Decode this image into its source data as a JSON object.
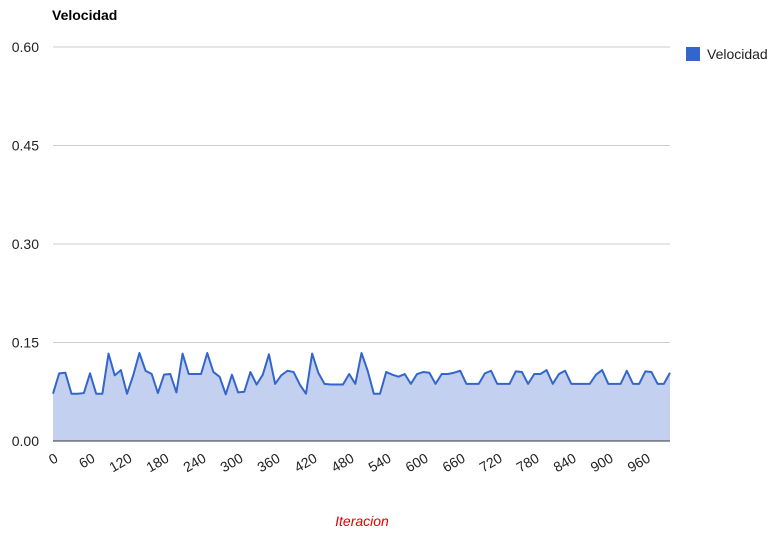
{
  "chart_data": {
    "type": "area",
    "title": "Velocidad",
    "xlabel": "Iteracion",
    "ylabel": "",
    "ylim": [
      0,
      0.6
    ],
    "yticks": [
      "0.00",
      "0.15",
      "0.30",
      "0.45",
      "0.60"
    ],
    "xticks": [
      "0",
      "60",
      "120",
      "180",
      "240",
      "300",
      "360",
      "420",
      "480",
      "540",
      "600",
      "660",
      "720",
      "780",
      "840",
      "900",
      "960"
    ],
    "xlim": [
      0,
      1000
    ],
    "grid": true,
    "legend_position": "right",
    "series": [
      {
        "name": "Velocidad",
        "color": "#3366cc",
        "x": [
          0,
          10,
          20,
          30,
          40,
          50,
          60,
          70,
          80,
          90,
          100,
          110,
          120,
          130,
          140,
          150,
          160,
          170,
          180,
          190,
          200,
          210,
          220,
          230,
          240,
          250,
          260,
          270,
          280,
          290,
          300,
          310,
          320,
          330,
          340,
          350,
          360,
          370,
          380,
          390,
          400,
          410,
          420,
          430,
          440,
          450,
          460,
          470,
          480,
          490,
          500,
          510,
          520,
          530,
          540,
          550,
          560,
          570,
          580,
          590,
          600,
          610,
          620,
          630,
          640,
          650,
          660,
          670,
          680,
          690,
          700,
          710,
          720,
          730,
          740,
          750,
          760,
          770,
          780,
          790,
          800,
          810,
          820,
          830,
          840,
          850,
          860,
          870,
          880,
          890,
          900,
          910,
          920,
          930,
          940,
          950,
          960,
          970,
          980,
          990,
          1000
        ],
        "values": [
          0.072,
          0.103,
          0.104,
          0.072,
          0.072,
          0.073,
          0.103,
          0.072,
          0.072,
          0.133,
          0.1,
          0.108,
          0.072,
          0.1,
          0.134,
          0.107,
          0.102,
          0.073,
          0.101,
          0.102,
          0.074,
          0.133,
          0.102,
          0.102,
          0.102,
          0.134,
          0.105,
          0.098,
          0.071,
          0.101,
          0.074,
          0.075,
          0.105,
          0.086,
          0.101,
          0.132,
          0.087,
          0.1,
          0.107,
          0.105,
          0.086,
          0.072,
          0.133,
          0.104,
          0.087,
          0.086,
          0.086,
          0.086,
          0.102,
          0.087,
          0.134,
          0.107,
          0.072,
          0.072,
          0.105,
          0.101,
          0.098,
          0.102,
          0.087,
          0.102,
          0.105,
          0.104,
          0.087,
          0.102,
          0.102,
          0.104,
          0.107,
          0.087,
          0.087,
          0.087,
          0.103,
          0.107,
          0.087,
          0.087,
          0.087,
          0.106,
          0.105,
          0.087,
          0.102,
          0.102,
          0.108,
          0.087,
          0.102,
          0.107,
          0.087,
          0.087,
          0.087,
          0.087,
          0.101,
          0.108,
          0.087,
          0.087,
          0.087,
          0.107,
          0.087,
          0.087,
          0.106,
          0.105,
          0.087,
          0.087,
          0.104
        ]
      }
    ]
  }
}
